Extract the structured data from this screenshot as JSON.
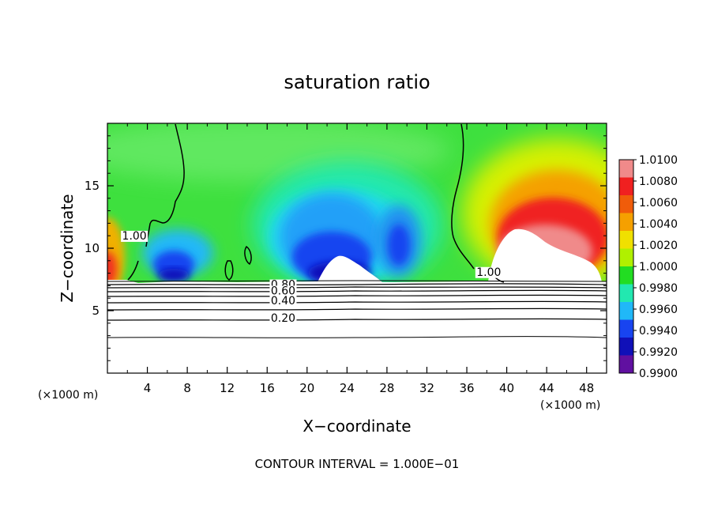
{
  "chart_data": {
    "type": "heatmap",
    "title": "saturation ratio",
    "xlabel": "X−coordinate",
    "ylabel": "Z−coordinate",
    "x_unit": "(×1000 m)",
    "xlim": [
      0,
      50
    ],
    "ylim": [
      0,
      20
    ],
    "xticks": [
      4,
      8,
      12,
      16,
      20,
      24,
      28,
      32,
      36,
      40,
      44,
      48
    ],
    "yticks": [
      5,
      10,
      15
    ],
    "colorbar": {
      "min": 0.99,
      "max": 1.01,
      "labels": [
        "1.0100",
        "1.0080",
        "1.0060",
        "1.0040",
        "1.0020",
        "1.0000",
        "0.9980",
        "0.9960",
        "0.9940",
        "0.9920",
        "0.9900"
      ],
      "colors": [
        "#f08a8a",
        "#f02020",
        "#f05c0a",
        "#f5a000",
        "#f0e000",
        "#b0f000",
        "#22dd22",
        "#22e8b0",
        "#20b8f8",
        "#1844f0",
        "#1010b8",
        "#6010a0"
      ]
    },
    "contour_labels": [
      {
        "text": "1.00",
        "x": 2.7,
        "z": 10.7
      },
      {
        "text": "1.00",
        "x": 38.2,
        "z": 7.8
      },
      {
        "text": "0.80",
        "x": 17.6,
        "z": 6.8
      },
      {
        "text": "0.60",
        "x": 17.6,
        "z": 6.3
      },
      {
        "text": "0.40",
        "x": 17.6,
        "z": 5.5
      },
      {
        "text": "0.20",
        "x": 17.6,
        "z": 4.1
      }
    ],
    "contour_interval_text": "CONTOUR INTERVAL = 1.000E−01"
  }
}
